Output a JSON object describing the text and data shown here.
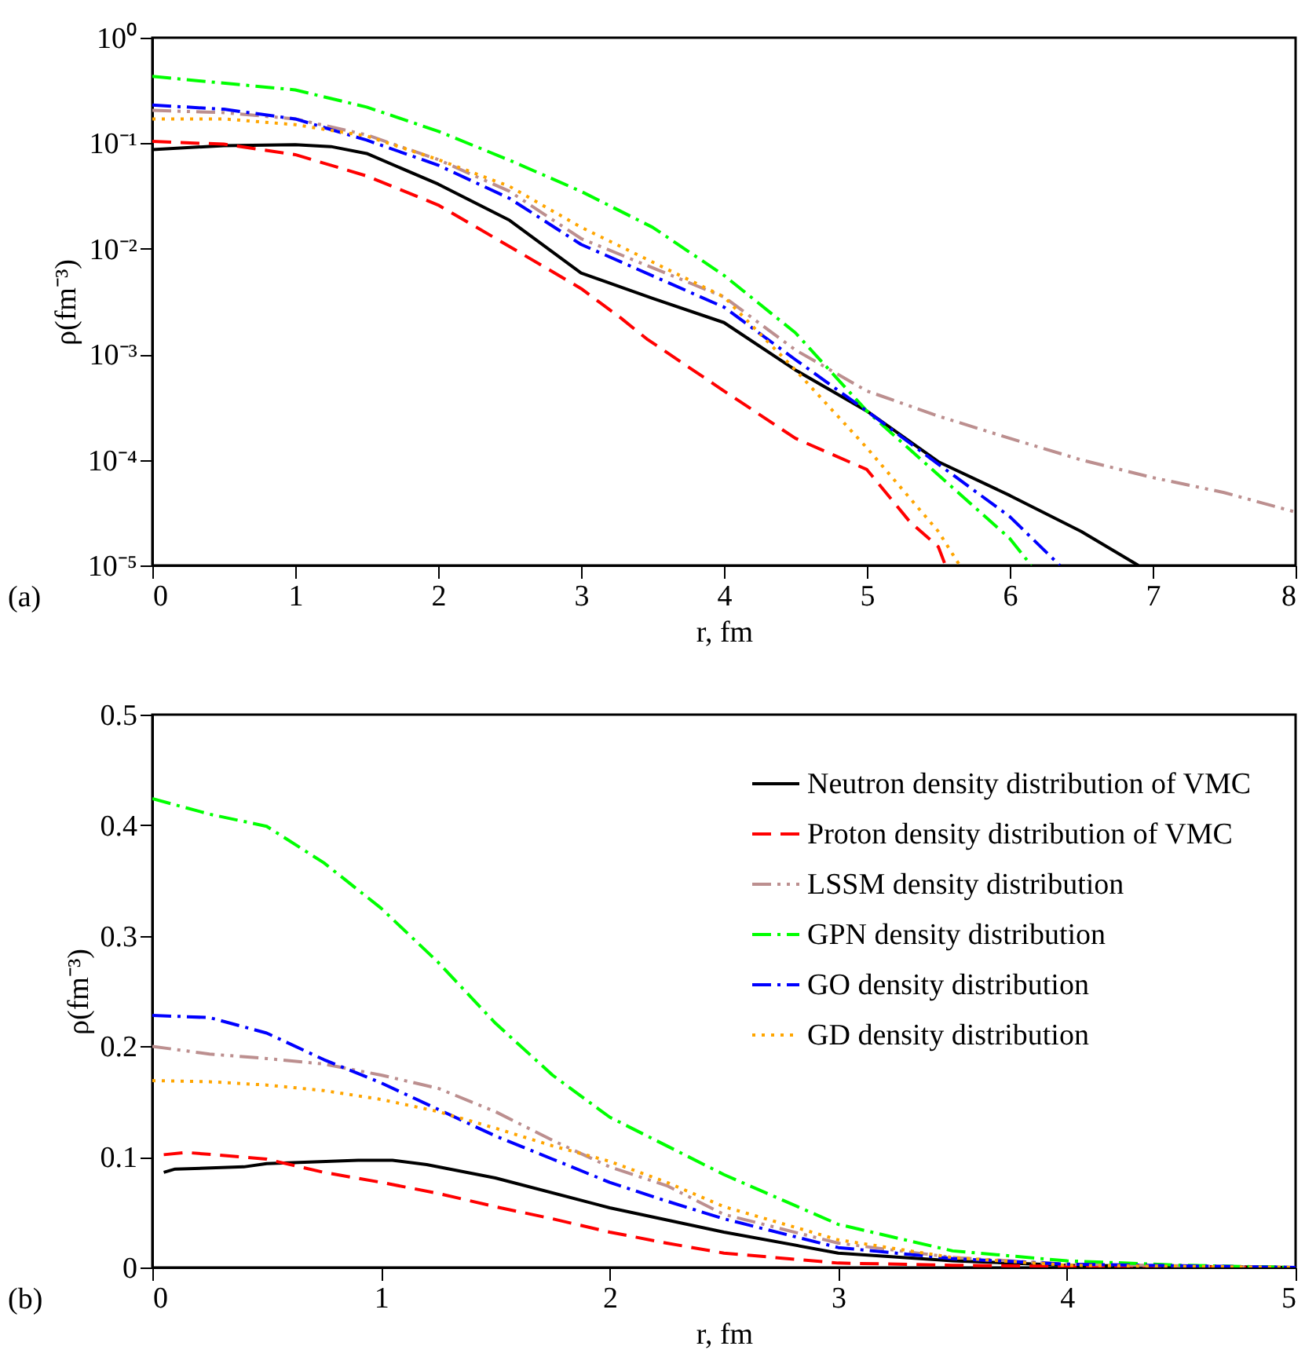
{
  "chart_data": [
    {
      "type": "line",
      "xlabel": "r, fm",
      "ylabel": "ρ(fm⁻³)",
      "log": "y",
      "xlim": [
        0,
        8
      ],
      "ylim": [
        1e-05,
        1
      ],
      "xticks": [
        0,
        1,
        2,
        3,
        4,
        5,
        6,
        7,
        8
      ],
      "yticks": [
        {
          "value": 1e-05,
          "label": "10⁻⁵"
        },
        {
          "value": 0.0001,
          "label": "10⁻⁴"
        },
        {
          "value": 0.001,
          "label": "10⁻³"
        },
        {
          "value": 0.01,
          "label": "10⁻²"
        },
        {
          "value": 0.1,
          "label": "10⁻¹"
        },
        {
          "value": 1,
          "label": "10⁰"
        }
      ],
      "annotations": [
        "(a)"
      ],
      "series": [
        {
          "color": "#000000",
          "line_style": "solid",
          "x": [
            0,
            0.5,
            1,
            1.25,
            1.5,
            2,
            2.5,
            3,
            3.5,
            4,
            4.5,
            5,
            5.5,
            6,
            6.5,
            6.9
          ],
          "values": [
            0.087,
            0.095,
            0.097,
            0.093,
            0.08,
            0.041,
            0.0186,
            0.0059,
            0.0034,
            0.002,
            0.00071,
            0.00029,
            9.6e-05,
            4.6e-05,
            2.1e-05,
            1e-05
          ]
        },
        {
          "color": "#ff0000",
          "line_style": "dashed",
          "x": [
            0,
            0.5,
            1,
            1.5,
            2,
            2.5,
            3,
            3.28,
            3.46,
            4,
            4.5,
            5,
            5.3,
            5.5,
            5.55
          ],
          "values": [
            0.104,
            0.098,
            0.078,
            0.049,
            0.026,
            0.0105,
            0.0042,
            0.0022,
            0.0014,
            0.00045,
            0.00016,
            8.1e-05,
            2.6e-05,
            1.5e-05,
            1e-05
          ]
        },
        {
          "color": "#bc8f8f",
          "line_style": "dashdotdot",
          "x": [
            0,
            0.5,
            1,
            1.5,
            2,
            2.5,
            3,
            4,
            4.5,
            5,
            5.5,
            6,
            6.5,
            7,
            7.5,
            8
          ],
          "values": [
            0.205,
            0.195,
            0.17,
            0.12,
            0.07,
            0.035,
            0.0125,
            0.0035,
            0.0011,
            0.00045,
            0.00026,
            0.00016,
            0.0001,
            6.8e-05,
            4.9e-05,
            3.2e-05
          ]
        },
        {
          "color": "#00ff00",
          "line_style": "dashdot",
          "x": [
            0,
            1,
            1.5,
            2,
            2.5,
            3,
            3.5,
            4,
            4.5,
            5,
            5.5,
            6,
            6.15
          ],
          "values": [
            0.43,
            0.32,
            0.22,
            0.13,
            0.069,
            0.035,
            0.016,
            0.0056,
            0.0016,
            0.00029,
            7.2e-05,
            1.8e-05,
            1e-05
          ]
        },
        {
          "color": "#0000ff",
          "line_style": "dashdot",
          "x": [
            0,
            0.5,
            1,
            1.5,
            2,
            2.5,
            3,
            4,
            4.5,
            5,
            5.5,
            6,
            6.35
          ],
          "values": [
            0.23,
            0.21,
            0.17,
            0.107,
            0.062,
            0.03,
            0.011,
            0.0028,
            0.00089,
            0.00029,
            9.1e-05,
            2.9e-05,
            1e-05
          ]
        },
        {
          "color": "#ffa500",
          "line_style": "dotted",
          "x": [
            0,
            0.5,
            1,
            1.5,
            2,
            2.5,
            3,
            4,
            4.5,
            5,
            5.5,
            5.65
          ],
          "values": [
            0.17,
            0.17,
            0.15,
            0.117,
            0.07,
            0.039,
            0.016,
            0.0035,
            0.00071,
            0.00013,
            2.1e-05,
            1e-05
          ]
        }
      ]
    },
    {
      "type": "line",
      "xlabel": "r, fm",
      "ylabel": "ρ(fm⁻³)",
      "xlim": [
        0,
        5
      ],
      "ylim": [
        0,
        0.5
      ],
      "xticks": [
        0,
        1,
        2,
        3,
        4,
        5
      ],
      "yticks": [
        0,
        0.1,
        0.2,
        0.3,
        0.4,
        0.5
      ],
      "annotations": [
        "(b)"
      ],
      "legend": "top right",
      "series": [
        {
          "name": "Neutron density distribution of VMC",
          "color": "#000000",
          "line_style": "solid",
          "x": [
            0.05,
            0.1,
            0.4,
            0.5,
            0.9,
            1.05,
            1.2,
            1.5,
            2,
            2.5,
            3,
            3.5,
            4,
            4.5,
            5
          ],
          "values": [
            0.086,
            0.089,
            0.091,
            0.094,
            0.097,
            0.097,
            0.093,
            0.081,
            0.054,
            0.032,
            0.013,
            0.006,
            0.002,
            0.001,
            0
          ]
        },
        {
          "name": "Proton density distribution of VMC",
          "color": "#ff0000",
          "line_style": "dashed",
          "x": [
            0.05,
            0.15,
            0.5,
            0.75,
            1,
            1.25,
            1.5,
            1.75,
            2,
            2.25,
            2.5,
            3,
            3.5,
            4,
            5
          ],
          "values": [
            0.102,
            0.104,
            0.098,
            0.086,
            0.077,
            0.067,
            0.055,
            0.044,
            0.032,
            0.022,
            0.013,
            0.004,
            0.002,
            0.001,
            0
          ]
        },
        {
          "name": "LSSM density distribution",
          "color": "#bc8f8f",
          "line_style": "dashdotdot",
          "x": [
            0,
            0.25,
            0.5,
            0.75,
            1,
            1.25,
            1.5,
            1.75,
            2,
            2.25,
            2.5,
            3,
            3.5,
            4,
            5
          ],
          "values": [
            0.2,
            0.193,
            0.189,
            0.184,
            0.174,
            0.162,
            0.141,
            0.115,
            0.091,
            0.074,
            0.048,
            0.022,
            0.009,
            0.003,
            0
          ]
        },
        {
          "name": "GPN density distribution",
          "color": "#00ff00",
          "line_style": "dashdot",
          "x": [
            0,
            0.25,
            0.5,
            0.75,
            1,
            1.25,
            1.5,
            1.75,
            2,
            2.5,
            3,
            3.5,
            4,
            4.5,
            5
          ],
          "values": [
            0.424,
            0.41,
            0.399,
            0.366,
            0.325,
            0.276,
            0.221,
            0.174,
            0.136,
            0.084,
            0.039,
            0.015,
            0.006,
            0.002,
            0
          ]
        },
        {
          "name": "GO density distribution",
          "color": "#0000ff",
          "line_style": "dashdot",
          "x": [
            0,
            0.25,
            0.5,
            0.75,
            1,
            1.25,
            1.5,
            1.75,
            2,
            2.25,
            2.5,
            3,
            3.5,
            4,
            5
          ],
          "values": [
            0.228,
            0.226,
            0.212,
            0.188,
            0.167,
            0.143,
            0.119,
            0.098,
            0.077,
            0.06,
            0.044,
            0.018,
            0.008,
            0.003,
            0
          ]
        },
        {
          "name": "GD density distribution",
          "color": "#ffa500",
          "line_style": "dotted",
          "x": [
            0,
            0.25,
            0.5,
            0.75,
            1,
            1.25,
            1.5,
            1.75,
            2,
            2.25,
            2.5,
            3,
            3.5,
            4,
            5
          ],
          "values": [
            0.169,
            0.168,
            0.165,
            0.16,
            0.152,
            0.141,
            0.126,
            0.11,
            0.096,
            0.077,
            0.055,
            0.025,
            0.009,
            0.002,
            0
          ]
        }
      ]
    }
  ]
}
